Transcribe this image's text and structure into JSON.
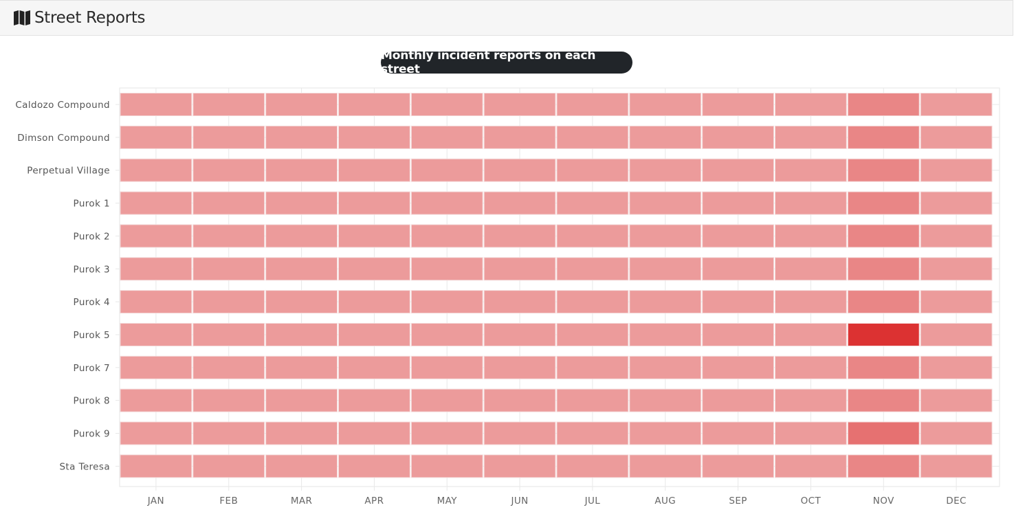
{
  "header": {
    "title": "Street Reports",
    "icon": "map-icon"
  },
  "chart_data": {
    "type": "heatmap",
    "title": "Monthly incident reports on each street",
    "categories": [
      "JAN",
      "FEB",
      "MAR",
      "APR",
      "MAY",
      "JUN",
      "JUL",
      "AUG",
      "SEP",
      "OCT",
      "NOV",
      "DEC"
    ],
    "rows": [
      "Caldozo Compound",
      "Dimson Compound",
      "Perpetual Village",
      "Purok 1",
      "Purok 2",
      "Purok 3",
      "Purok 4",
      "Purok 5",
      "Purok 7",
      "Purok 8",
      "Purok 9",
      "Sta Teresa"
    ],
    "values": [
      [
        0,
        0,
        0,
        0,
        0,
        0,
        0,
        0,
        0,
        0,
        2,
        0
      ],
      [
        0,
        0,
        0,
        0,
        0,
        0,
        0,
        0,
        0,
        0,
        2,
        0
      ],
      [
        0,
        0,
        0,
        0,
        0,
        0,
        0,
        0,
        0,
        0,
        2,
        0
      ],
      [
        0,
        0,
        0,
        0,
        0,
        0,
        0,
        0,
        0,
        0,
        2,
        0
      ],
      [
        0,
        0,
        0,
        0,
        0,
        0,
        0,
        0,
        0,
        0,
        2,
        0
      ],
      [
        0,
        0,
        0,
        0,
        0,
        0,
        0,
        0,
        0,
        0,
        2,
        0
      ],
      [
        0,
        0,
        0,
        0,
        0,
        0,
        0,
        0,
        0,
        0,
        2,
        0
      ],
      [
        0,
        0,
        0,
        0,
        0,
        0,
        0,
        0,
        0,
        0,
        10,
        0
      ],
      [
        0,
        0,
        0,
        0,
        0,
        0,
        0,
        0,
        0,
        0,
        2,
        0
      ],
      [
        0,
        0,
        0,
        0,
        0,
        0,
        0,
        0,
        0,
        0,
        2,
        0
      ],
      [
        0,
        0,
        0,
        0,
        0,
        0,
        0,
        0,
        0,
        0,
        4,
        0
      ],
      [
        0,
        0,
        0,
        0,
        0,
        0,
        0,
        0,
        0,
        0,
        2,
        0
      ]
    ],
    "color_min": "#ec9b9b",
    "color_max": "#dc3232",
    "grid": true,
    "legend": "none"
  }
}
